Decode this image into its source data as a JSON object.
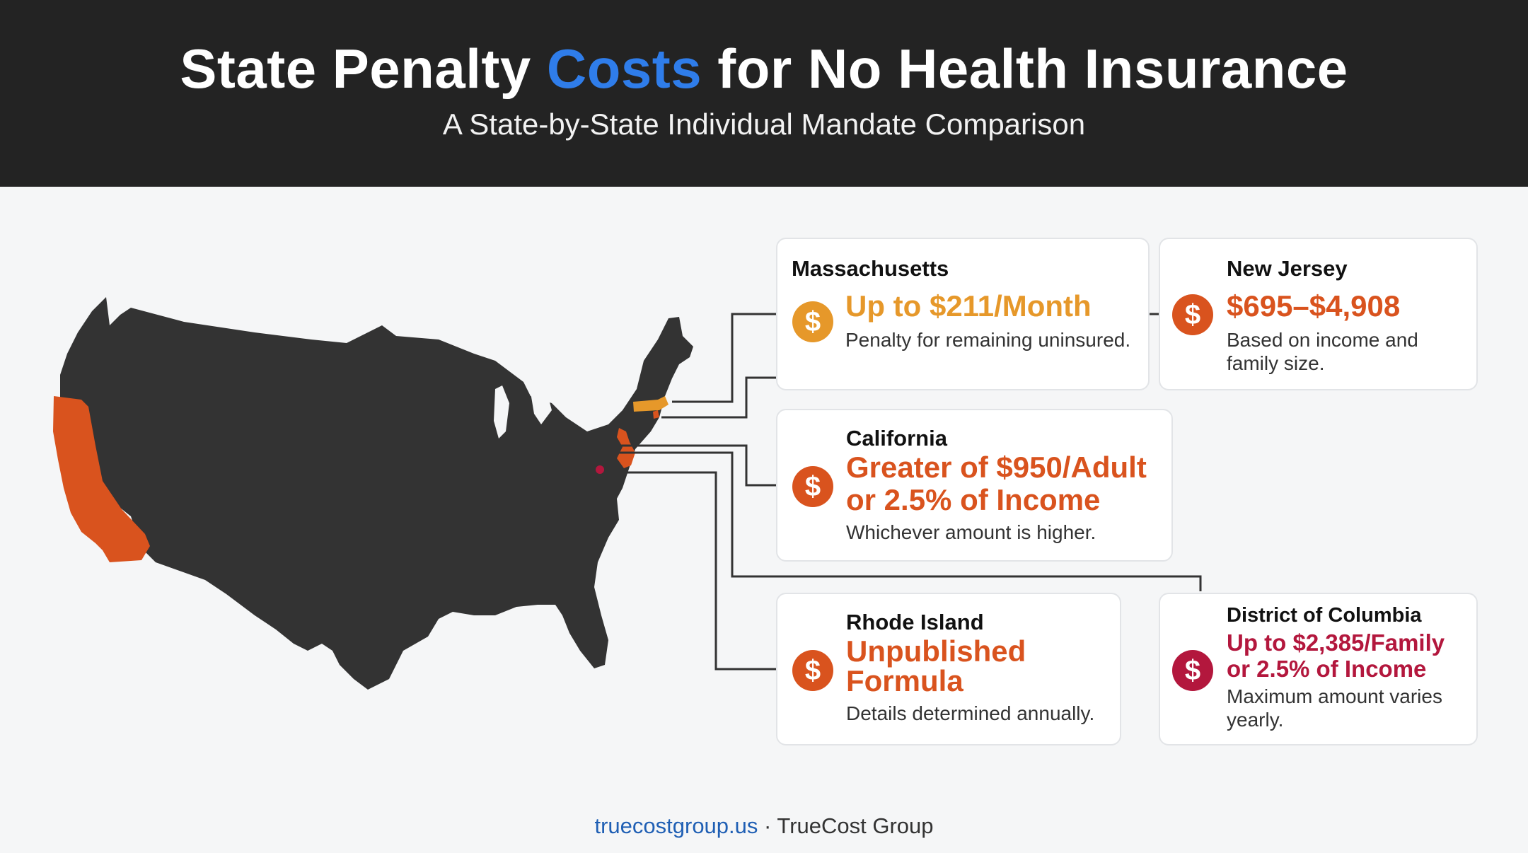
{
  "header": {
    "title_part1": "State Penalty ",
    "title_accent": "Costs",
    "title_part2": " for No Health Insurance",
    "subtitle": "A State-by-State Individual Mandate Comparison"
  },
  "colors": {
    "header_bg": "#232323",
    "title_accent": "#2f7dea",
    "map_base": "#333333",
    "massachusetts": "#e6982a",
    "new_jersey": "#d9531e",
    "california": "#d9531e",
    "rhode_island": "#d9531e",
    "district_of_columbia": "#b3173d"
  },
  "cards": {
    "massachusetts": {
      "state": "Massachusetts",
      "icon": "dollar-coin-icon",
      "amount": "Up to $211/Month",
      "note": "Penalty for remaining uninsured."
    },
    "new_jersey": {
      "state": "New Jersey",
      "icon": "dollar-coin-icon",
      "amount": "$695–$4,908",
      "note_line1": "Based on income and",
      "note_line2": "family size."
    },
    "california": {
      "state": "California",
      "icon": "dollar-coin-icon",
      "amount_line1": "Greater of $950/Adult",
      "amount_line2": "or 2.5% of Income",
      "note": "Whichever amount is higher."
    },
    "rhode_island": {
      "state": "Rhode Island",
      "icon": "dollar-coin-icon",
      "amount_line1": "Unpublished",
      "amount_line2": "Formula",
      "note": "Details determined annually."
    },
    "district_of_columbia": {
      "state": "District of Columbia",
      "icon": "dollar-coin-icon",
      "amount_line1": "Up to $2,385/Family",
      "amount_line2": "or 2.5% of Income",
      "note_line1": "Maximum amount varies",
      "note_line2": "yearly."
    }
  },
  "coin_symbol": "$",
  "footer": {
    "site": "truecostgroup.us",
    "separator": " · ",
    "company": "TrueCost Group"
  }
}
